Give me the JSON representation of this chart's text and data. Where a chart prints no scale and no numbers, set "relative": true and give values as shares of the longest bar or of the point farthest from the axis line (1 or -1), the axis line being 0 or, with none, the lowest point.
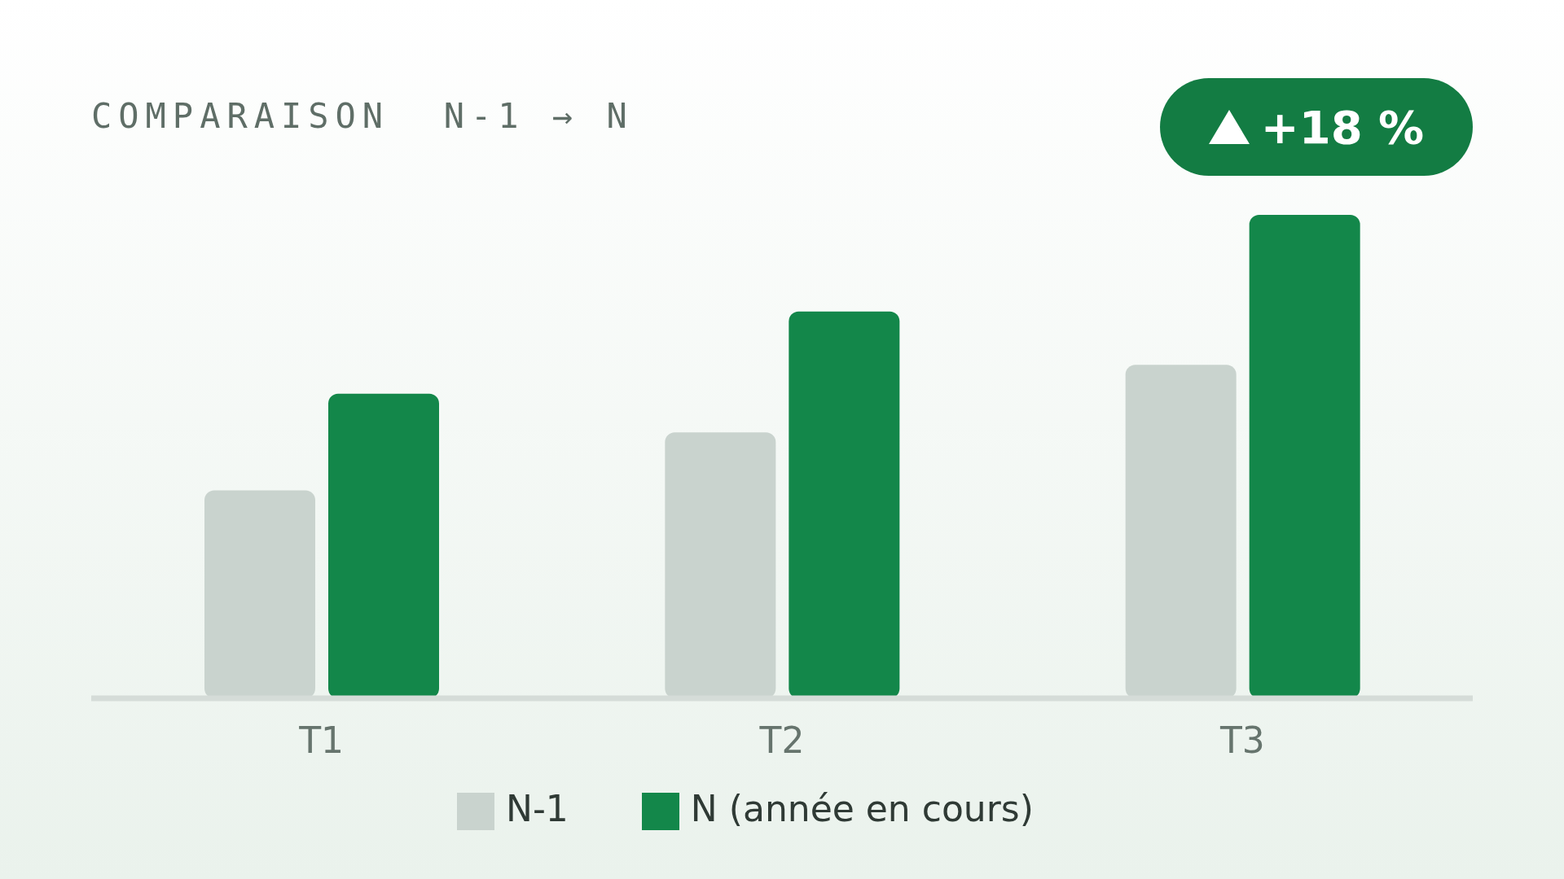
{
  "chart_data": {
    "type": "bar",
    "title": "COMPARAISON  N-1 → N",
    "relative": true,
    "categories": [
      "T1",
      "T2",
      "T3"
    ],
    "series": [
      {
        "name": "N-1",
        "color": "#c9d3ce",
        "values": [
          0.43,
          0.55,
          0.69
        ]
      },
      {
        "name": "N (année en cours)",
        "color": "#13874a",
        "values": [
          0.63,
          0.8,
          1
        ]
      }
    ],
    "annotations": [
      "+18 %"
    ],
    "legend": "bottom",
    "grid": false
  }
}
